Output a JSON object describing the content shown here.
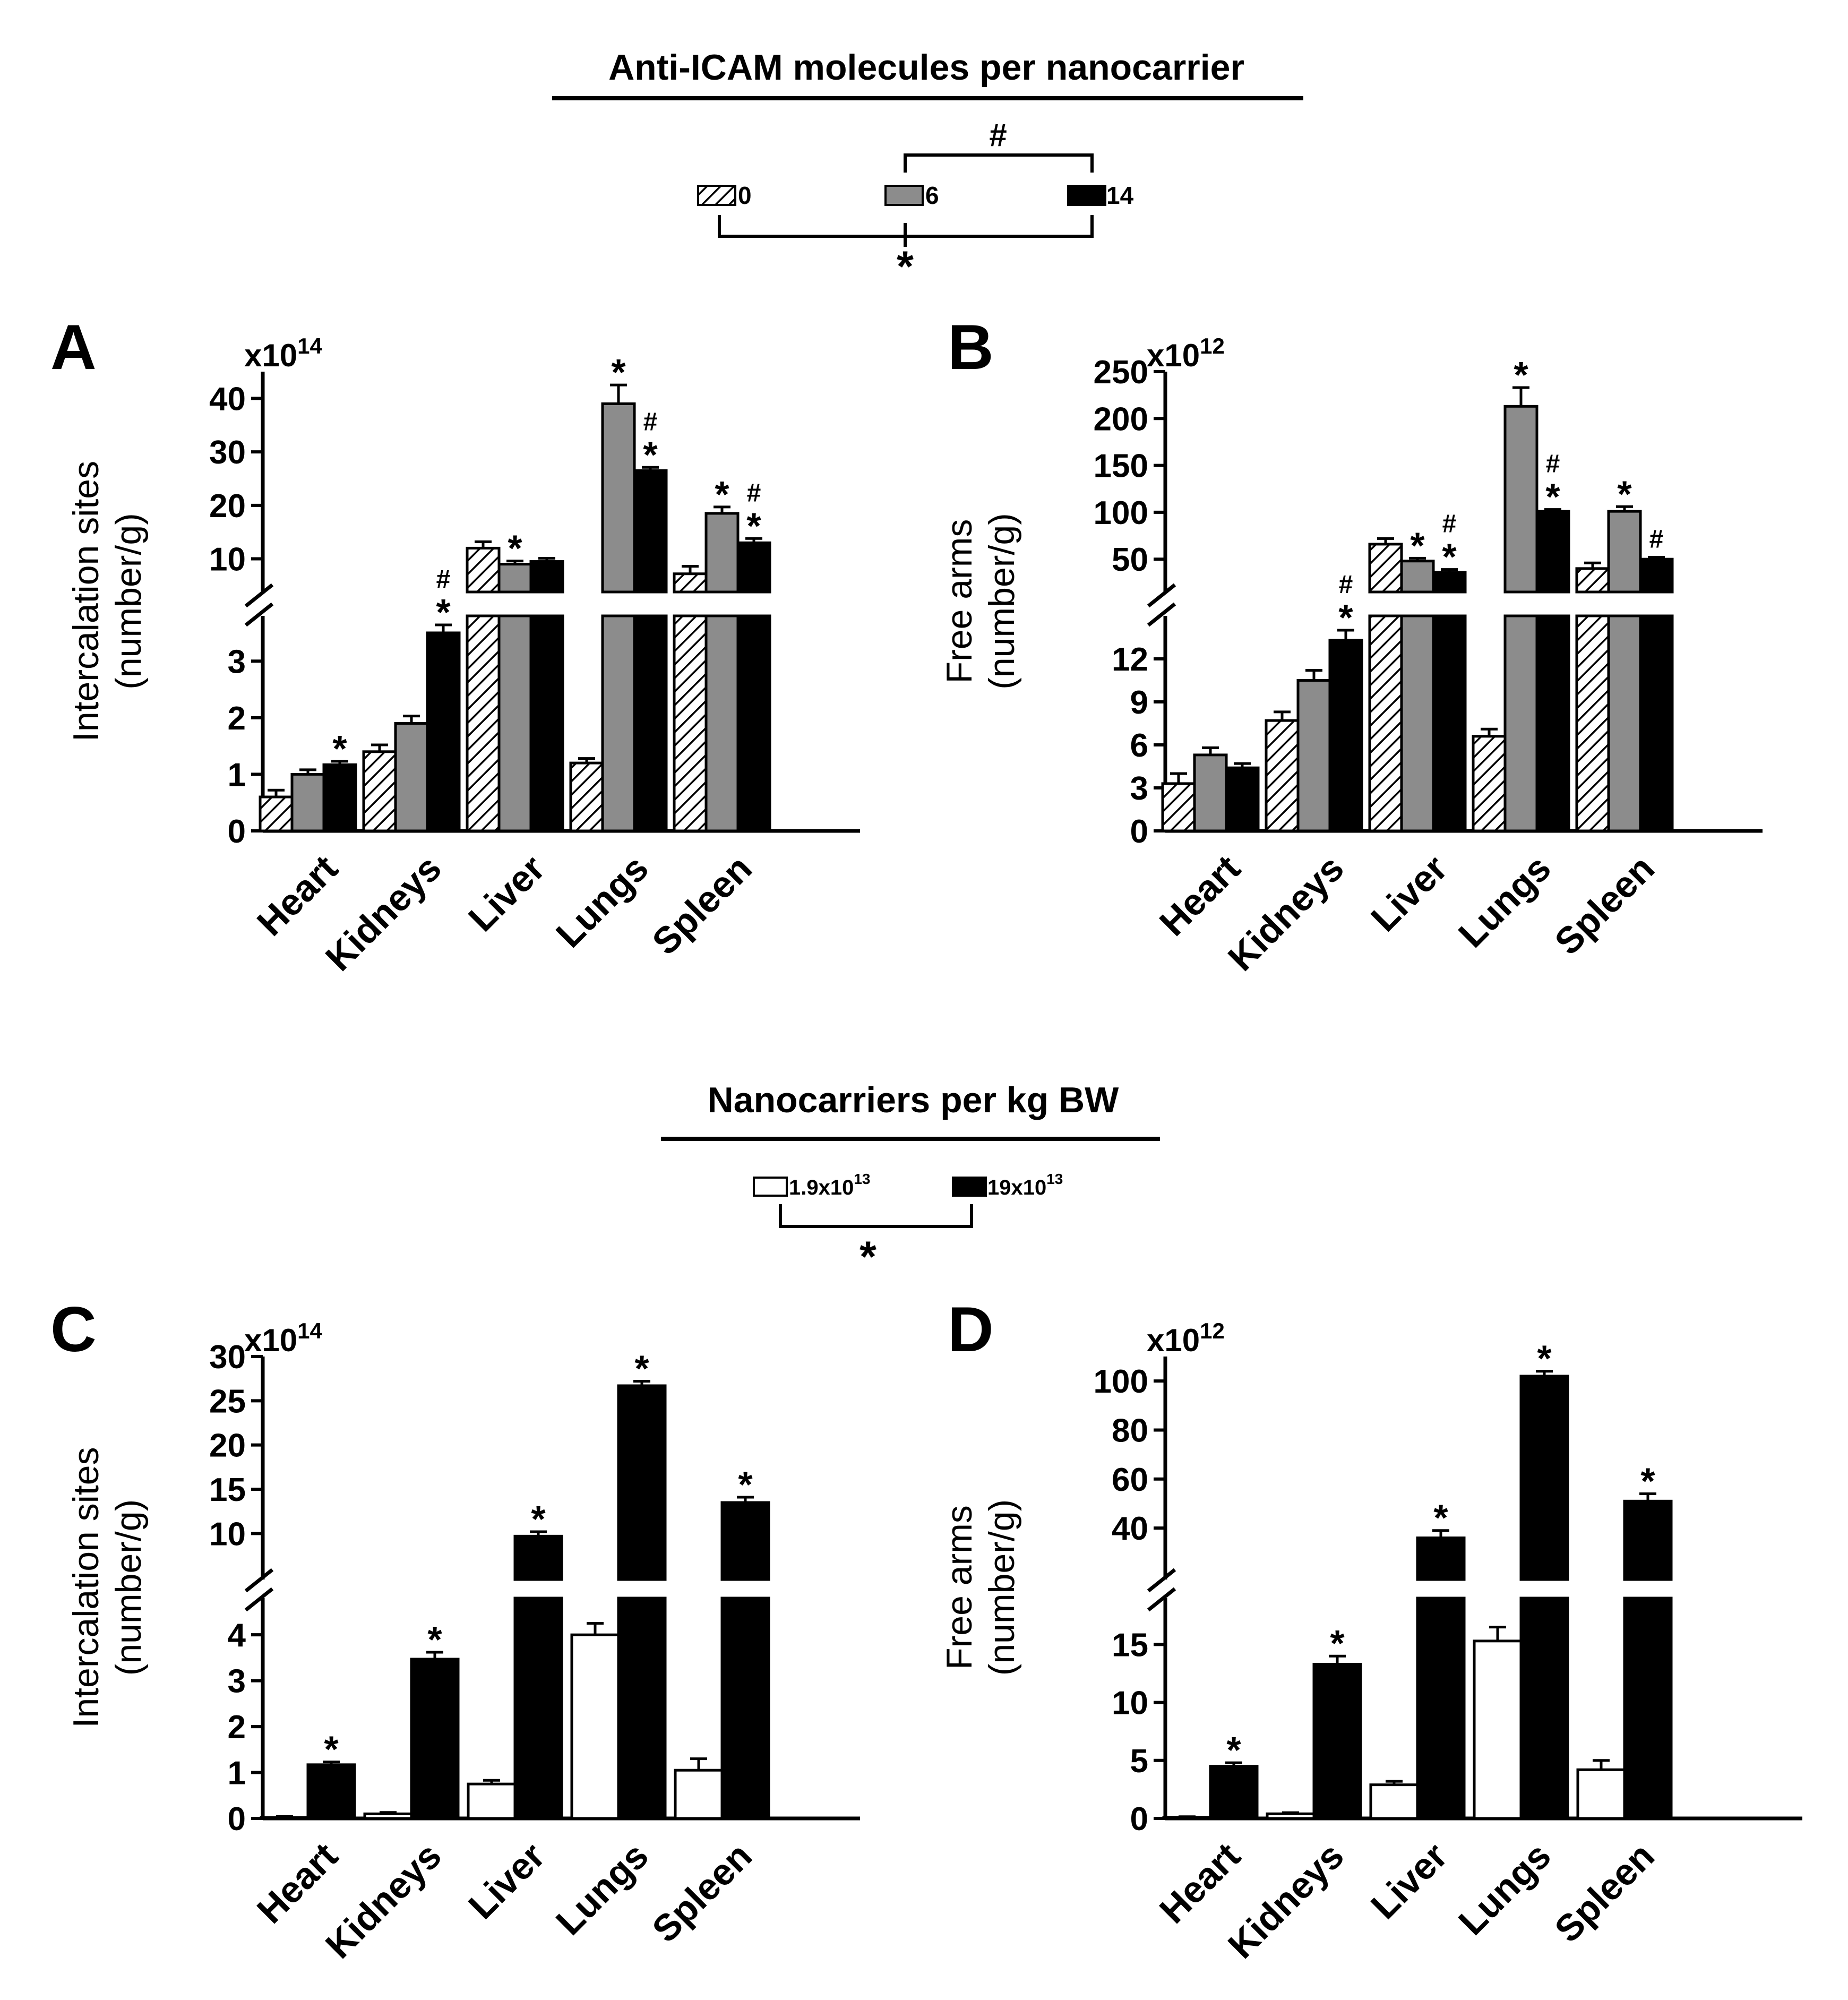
{
  "section1": {
    "title": "Anti-ICAM molecules per nanocarrier",
    "legend": [
      {
        "label": "0",
        "pattern": "hatch"
      },
      {
        "label": "6",
        "pattern": "gray"
      },
      {
        "label": "14",
        "pattern": "black"
      }
    ],
    "sig_top": "#",
    "sig_bottom": "*"
  },
  "section2": {
    "title": "Nanocarriers per kg BW",
    "legend": [
      {
        "label_base": "1.9x10",
        "label_exp": "13",
        "pattern": "white"
      },
      {
        "label_base": "19x10",
        "label_exp": "13",
        "pattern": "black"
      }
    ],
    "sig": "*"
  },
  "colors": {
    "black": "#000000",
    "gray": "#8c8c8c",
    "white": "#ffffff",
    "hatch": "#000000"
  },
  "chart_data": [
    {
      "panel": "A",
      "type": "bar",
      "broken_axis": true,
      "ylabel": [
        "Intercalation sites",
        "(number/g)"
      ],
      "multiplier_base": "x10",
      "multiplier_exp": "14",
      "categories": [
        "Heart",
        "Kidneys",
        "Liver",
        "Lungs",
        "Spleen"
      ],
      "lower": {
        "ylim": [
          0,
          3.8
        ],
        "ticks": [
          "0",
          "1",
          "2",
          "3"
        ]
      },
      "upper": {
        "ylim": [
          3.8,
          45
        ],
        "ticks": [
          "10",
          "20",
          "30",
          "40"
        ]
      },
      "series": [
        {
          "name": "0",
          "pattern": "hatch",
          "values": [
            0.6,
            1.4,
            12.0,
            1.2,
            7.2
          ],
          "errors": [
            0.12,
            0.12,
            1.2,
            0.08,
            1.4
          ],
          "marks": [
            "",
            "",
            "",
            "",
            ""
          ]
        },
        {
          "name": "6",
          "pattern": "gray",
          "values": [
            1.0,
            1.9,
            9.0,
            39.0,
            18.5
          ],
          "errors": [
            0.08,
            0.13,
            0.6,
            3.5,
            1.2
          ],
          "marks": [
            "",
            "",
            "*",
            "*",
            "*"
          ]
        },
        {
          "name": "14",
          "pattern": "black",
          "values": [
            1.17,
            3.5,
            9.5,
            26.5,
            13.0
          ],
          "errors": [
            0.06,
            0.14,
            0.6,
            0.6,
            0.8
          ],
          "marks": [
            "*",
            "#\n*",
            "",
            "#\n*",
            "#\n*"
          ]
        }
      ]
    },
    {
      "panel": "B",
      "type": "bar",
      "broken_axis": true,
      "ylabel": [
        "Free arms",
        "(number/g)"
      ],
      "multiplier_base": "x10",
      "multiplier_exp": "12",
      "categories": [
        "Heart",
        "Kidneys",
        "Liver",
        "Lungs",
        "Spleen"
      ],
      "lower": {
        "ylim": [
          0,
          15
        ],
        "ticks": [
          "0",
          "3",
          "6",
          "9",
          "12"
        ]
      },
      "upper": {
        "ylim": [
          15,
          250
        ],
        "ticks": [
          "50",
          "100",
          "150",
          "200",
          "250"
        ]
      },
      "series": [
        {
          "name": "0",
          "pattern": "hatch",
          "values": [
            3.3,
            7.7,
            66,
            6.6,
            40
          ],
          "errors": [
            0.7,
            0.6,
            6,
            0.5,
            6
          ],
          "marks": [
            "",
            "",
            "",
            "",
            ""
          ]
        },
        {
          "name": "6",
          "pattern": "gray",
          "values": [
            5.3,
            10.5,
            48,
            213,
            101
          ],
          "errors": [
            0.5,
            0.7,
            3,
            20,
            5
          ],
          "marks": [
            "",
            "",
            "*",
            "*",
            "*"
          ]
        },
        {
          "name": "14",
          "pattern": "black",
          "values": [
            4.4,
            13.3,
            36,
            101,
            50
          ],
          "errors": [
            0.3,
            0.7,
            3,
            2,
            2
          ],
          "marks": [
            "",
            "#\n*",
            "#\n*",
            "#\n*",
            "#"
          ]
        }
      ]
    },
    {
      "panel": "C",
      "type": "bar",
      "broken_axis": true,
      "ylabel": [
        "Intercalation sites",
        "(number/g)"
      ],
      "multiplier_base": "x10",
      "multiplier_exp": "14",
      "categories": [
        "Heart",
        "Kidneys",
        "Liver",
        "Lungs",
        "Spleen"
      ],
      "lower": {
        "ylim": [
          0,
          4.8
        ],
        "ticks": [
          "0",
          "1",
          "2",
          "3",
          "4"
        ]
      },
      "upper": {
        "ylim": [
          4.8,
          30
        ],
        "ticks": [
          "10",
          "15",
          "20",
          "25",
          "30"
        ]
      },
      "series": [
        {
          "name": "1.9x10^13",
          "pattern": "white",
          "values": [
            0.02,
            0.1,
            0.75,
            4.0,
            1.05
          ],
          "errors": [
            0.02,
            0.03,
            0.08,
            0.25,
            0.25
          ],
          "marks": [
            "",
            "",
            "",
            "",
            ""
          ]
        },
        {
          "name": "19x10^13",
          "pattern": "black",
          "values": [
            1.17,
            3.47,
            9.7,
            26.7,
            13.5
          ],
          "errors": [
            0.06,
            0.15,
            0.5,
            0.5,
            0.6
          ],
          "marks": [
            "*",
            "*",
            "*",
            "*",
            "*"
          ]
        }
      ]
    },
    {
      "panel": "D",
      "type": "bar",
      "broken_axis": true,
      "ylabel": [
        "Free arms",
        "(number/g)"
      ],
      "multiplier_base": "x10",
      "multiplier_exp": "12",
      "categories": [
        "Heart",
        "Kidneys",
        "Liver",
        "Lungs",
        "Spleen"
      ],
      "lower": {
        "ylim": [
          0,
          19
        ],
        "ticks": [
          "0",
          "5",
          "10",
          "15"
        ]
      },
      "upper": {
        "ylim": [
          19,
          110
        ],
        "ticks": [
          "40",
          "60",
          "80",
          "100"
        ]
      },
      "series": [
        {
          "name": "1.9x10^13",
          "pattern": "white",
          "values": [
            0.1,
            0.4,
            2.9,
            15.3,
            4.2
          ],
          "errors": [
            0.05,
            0.1,
            0.3,
            1.2,
            0.8
          ],
          "marks": [
            "",
            "",
            "",
            "",
            ""
          ]
        },
        {
          "name": "19x10^13",
          "pattern": "black",
          "values": [
            4.5,
            13.3,
            36,
            102,
            51
          ],
          "errors": [
            0.3,
            0.7,
            3,
            2,
            3
          ],
          "marks": [
            "*",
            "*",
            "*",
            "*",
            "*"
          ]
        }
      ]
    }
  ]
}
